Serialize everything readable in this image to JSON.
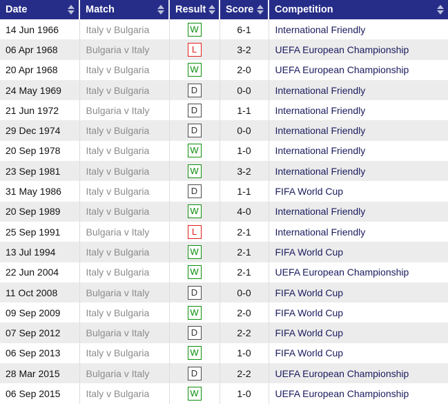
{
  "colors": {
    "header_bg": "#262d88",
    "header_text": "#ffffff",
    "sort_icon": "#b9bfd8",
    "row_alt_bg": "#ececec",
    "win": "#0b8f0b",
    "loss": "#e51c1c",
    "draw": "#4a4a4a",
    "date_text": "#111111",
    "match_text": "#8b8b8b",
    "competition_text": "#1a1a5e"
  },
  "table": {
    "columns": [
      {
        "label": "Date"
      },
      {
        "label": "Match"
      },
      {
        "label": "Result"
      },
      {
        "label": "Score"
      },
      {
        "label": "Competition"
      }
    ],
    "rows": [
      {
        "date": "14 Jun 1966",
        "match": "Italy v Bulgaria",
        "result": "W",
        "score": "6-1",
        "competition": "International Friendly"
      },
      {
        "date": "06 Apr 1968",
        "match": "Bulgaria v Italy",
        "result": "L",
        "score": "3-2",
        "competition": "UEFA European Championship"
      },
      {
        "date": "20 Apr 1968",
        "match": "Italy v Bulgaria",
        "result": "W",
        "score": "2-0",
        "competition": "UEFA European Championship"
      },
      {
        "date": "24 May 1969",
        "match": "Italy v Bulgaria",
        "result": "D",
        "score": "0-0",
        "competition": "International Friendly"
      },
      {
        "date": "21 Jun 1972",
        "match": "Bulgaria v Italy",
        "result": "D",
        "score": "1-1",
        "competition": "International Friendly"
      },
      {
        "date": "29 Dec 1974",
        "match": "Italy v Bulgaria",
        "result": "D",
        "score": "0-0",
        "competition": "International Friendly"
      },
      {
        "date": "20 Sep 1978",
        "match": "Italy v Bulgaria",
        "result": "W",
        "score": "1-0",
        "competition": "International Friendly"
      },
      {
        "date": "23 Sep 1981",
        "match": "Italy v Bulgaria",
        "result": "W",
        "score": "3-2",
        "competition": "International Friendly"
      },
      {
        "date": "31 May 1986",
        "match": "Italy v Bulgaria",
        "result": "D",
        "score": "1-1",
        "competition": "FIFA World Cup"
      },
      {
        "date": "20 Sep 1989",
        "match": "Italy v Bulgaria",
        "result": "W",
        "score": "4-0",
        "competition": "International Friendly"
      },
      {
        "date": "25 Sep 1991",
        "match": "Bulgaria v Italy",
        "result": "L",
        "score": "2-1",
        "competition": "International Friendly"
      },
      {
        "date": "13 Jul 1994",
        "match": "Italy v Bulgaria",
        "result": "W",
        "score": "2-1",
        "competition": "FIFA World Cup"
      },
      {
        "date": "22 Jun 2004",
        "match": "Italy v Bulgaria",
        "result": "W",
        "score": "2-1",
        "competition": "UEFA European Championship"
      },
      {
        "date": "11 Oct 2008",
        "match": "Bulgaria v Italy",
        "result": "D",
        "score": "0-0",
        "competition": "FIFA World Cup"
      },
      {
        "date": "09 Sep 2009",
        "match": "Italy v Bulgaria",
        "result": "W",
        "score": "2-0",
        "competition": "FIFA World Cup"
      },
      {
        "date": "07 Sep 2012",
        "match": "Bulgaria v Italy",
        "result": "D",
        "score": "2-2",
        "competition": "FIFA World Cup"
      },
      {
        "date": "06 Sep 2013",
        "match": "Italy v Bulgaria",
        "result": "W",
        "score": "1-0",
        "competition": "FIFA World Cup"
      },
      {
        "date": "28 Mar 2015",
        "match": "Bulgaria v Italy",
        "result": "D",
        "score": "2-2",
        "competition": "UEFA European Championship"
      },
      {
        "date": "06 Sep 2015",
        "match": "Italy v Bulgaria",
        "result": "W",
        "score": "1-0",
        "competition": "UEFA European Championship"
      }
    ]
  }
}
